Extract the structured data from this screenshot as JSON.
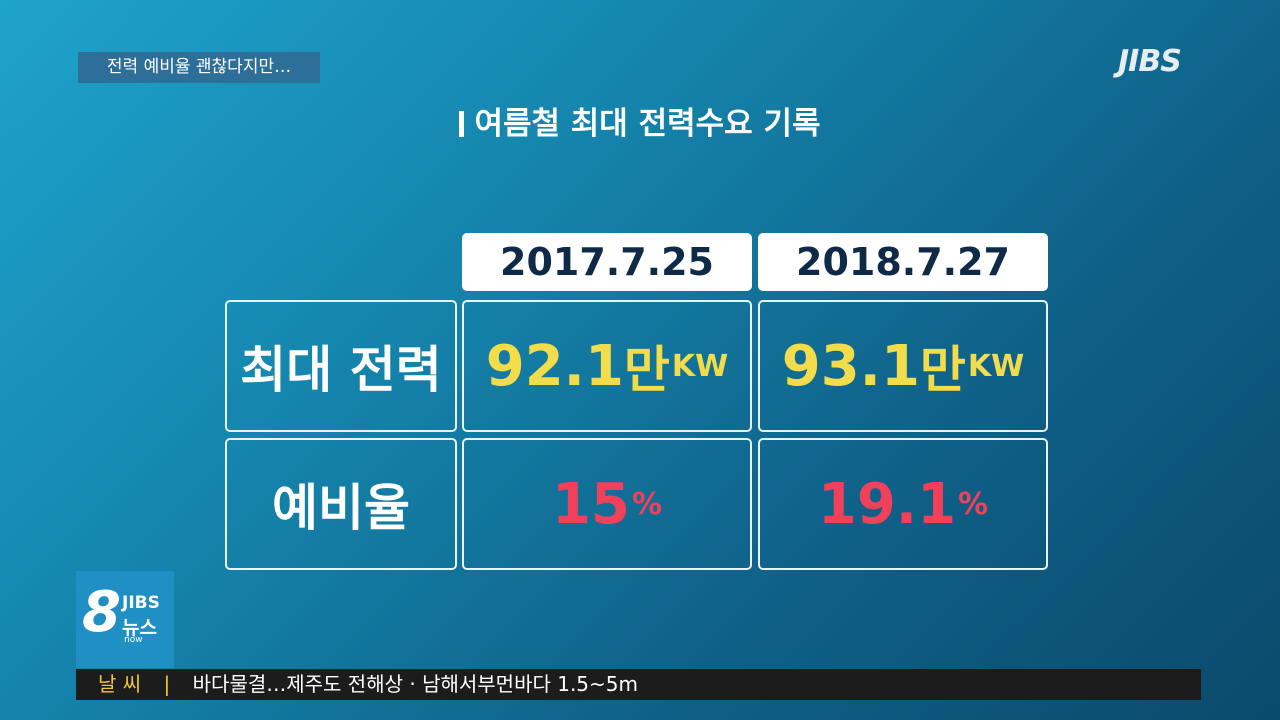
{
  "headline_tag": "전력 예비율 괜찮다지만…",
  "channel_logo": "JIBS",
  "title": "여름철 최대 전력수요 기록",
  "table": {
    "columns": [
      "2017.7.25",
      "2018.7.27"
    ],
    "rows": [
      {
        "label": "최대 전력",
        "cells": [
          {
            "number": "92.1",
            "unit": "만",
            "subunit": "KW"
          },
          {
            "number": "93.1",
            "unit": "만",
            "subunit": "KW"
          }
        ]
      },
      {
        "label": "예비율",
        "cells": [
          {
            "number": "15",
            "unit": "%"
          },
          {
            "number": "19.1",
            "unit": "%"
          }
        ]
      }
    ]
  },
  "news_logo": {
    "number": "8",
    "brand": "JIBS",
    "name": "뉴스",
    "sub": "now"
  },
  "ticker": {
    "label": "날 씨",
    "text": "바다물결…제주도 전해상 · 남해서부먼바다 1.5~5m"
  }
}
